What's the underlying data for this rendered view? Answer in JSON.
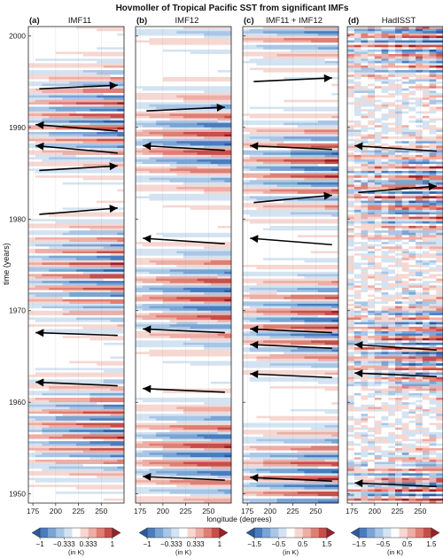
{
  "chart_data": {
    "type": "heatmap",
    "title": "Hovmoller of Tropical Pacific SST from significant IMFs",
    "ylabel": "time (years)",
    "xlabel": "longitude (degrees)",
    "ylim": [
      1949,
      2001
    ],
    "xlim": [
      170,
      275
    ],
    "yticks": [
      1950,
      1960,
      1970,
      1980,
      1990,
      2000
    ],
    "xticks": [
      175,
      200,
      225,
      250
    ],
    "colors": {
      "neg_dark": "#2f63a8",
      "neg_mid": "#6f9fd2",
      "neg_light": "#c7daee",
      "pos_light": "#f2c6c0",
      "pos_mid": "#e07f75",
      "pos_dark": "#a8232a",
      "arrow": "#000000"
    },
    "panels": [
      {
        "letter": "(a)",
        "name": "IMF11",
        "period": 1.35,
        "phase": 0.2,
        "amp": 1.0,
        "noise": 0.0,
        "arrows": [
          {
            "lon_from": 182,
            "year_from": 1994.2,
            "lon_to": 268,
            "year_to": 1994.6
          },
          {
            "lon_from": 268,
            "year_from": 1989.6,
            "lon_to": 178,
            "year_to": 1990.3
          },
          {
            "lon_from": 268,
            "year_from": 1987.2,
            "lon_to": 178,
            "year_to": 1988.0
          },
          {
            "lon_from": 182,
            "year_from": 1985.3,
            "lon_to": 268,
            "year_to": 1985.8
          },
          {
            "lon_from": 182,
            "year_from": 1980.5,
            "lon_to": 268,
            "year_to": 1981.2
          },
          {
            "lon_from": 268,
            "year_from": 1967.3,
            "lon_to": 178,
            "year_to": 1967.6
          },
          {
            "lon_from": 268,
            "year_from": 1961.8,
            "lon_to": 178,
            "year_to": 1962.2
          }
        ],
        "colorbar": {
          "range": [
            -1,
            1
          ],
          "tick_values": [
            -1,
            -0.333,
            0.333,
            1
          ],
          "tick_labels": [
            "−1",
            "−0.333",
            "0.333",
            "1"
          ],
          "unit": "(in K)"
        }
      },
      {
        "letter": "(b)",
        "name": "IMF12",
        "period": 2.0,
        "phase": 0.6,
        "amp": 1.0,
        "noise": 0.0,
        "arrows": [
          {
            "lon_from": 182,
            "year_from": 1991.8,
            "lon_to": 268,
            "year_to": 1992.2
          },
          {
            "lon_from": 268,
            "year_from": 1987.5,
            "lon_to": 178,
            "year_to": 1988.0
          },
          {
            "lon_from": 268,
            "year_from": 1977.3,
            "lon_to": 178,
            "year_to": 1977.9
          },
          {
            "lon_from": 268,
            "year_from": 1967.6,
            "lon_to": 178,
            "year_to": 1968.0
          },
          {
            "lon_from": 268,
            "year_from": 1961.1,
            "lon_to": 178,
            "year_to": 1961.5
          },
          {
            "lon_from": 268,
            "year_from": 1951.5,
            "lon_to": 178,
            "year_to": 1951.9
          }
        ],
        "colorbar": {
          "range": [
            -1,
            1
          ],
          "tick_values": [
            -1,
            -0.333,
            0.333,
            1
          ],
          "tick_labels": [
            "−1",
            "−0.333",
            "0.333",
            "1"
          ],
          "unit": "(in K)"
        }
      },
      {
        "letter": "(c)",
        "name": "IMF11 + IMF12",
        "period": 1.65,
        "phase": 0.4,
        "amp": 1.2,
        "noise": 0.0,
        "arrows": [
          {
            "lon_from": 182,
            "year_from": 1995.0,
            "lon_to": 268,
            "year_to": 1995.4
          },
          {
            "lon_from": 268,
            "year_from": 1987.6,
            "lon_to": 178,
            "year_to": 1988.0
          },
          {
            "lon_from": 182,
            "year_from": 1981.8,
            "lon_to": 268,
            "year_to": 1982.6
          },
          {
            "lon_from": 268,
            "year_from": 1977.2,
            "lon_to": 178,
            "year_to": 1977.9
          },
          {
            "lon_from": 268,
            "year_from": 1967.6,
            "lon_to": 178,
            "year_to": 1968.0
          },
          {
            "lon_from": 268,
            "year_from": 1965.9,
            "lon_to": 178,
            "year_to": 1966.3
          },
          {
            "lon_from": 268,
            "year_from": 1962.7,
            "lon_to": 178,
            "year_to": 1963.1
          },
          {
            "lon_from": 268,
            "year_from": 1951.4,
            "lon_to": 178,
            "year_to": 1951.8
          }
        ],
        "colorbar": {
          "range": [
            -1.5,
            1.5
          ],
          "tick_values": [
            -1.5,
            -0.5,
            0.5,
            1.5
          ],
          "tick_labels": [
            "−1.5",
            "−0.5",
            "0.5",
            "1.5"
          ],
          "unit": "(in K)"
        }
      },
      {
        "letter": "(d)",
        "name": "HadISST",
        "period": 1.1,
        "phase": 0.1,
        "amp": 1.5,
        "noise": 0.55,
        "arrows": [
          {
            "lon_from": 268,
            "year_from": 1987.4,
            "lon_to": 178,
            "year_to": 1988.0
          },
          {
            "lon_from": 182,
            "year_from": 1982.9,
            "lon_to": 268,
            "year_to": 1983.6
          },
          {
            "lon_from": 268,
            "year_from": 1965.7,
            "lon_to": 178,
            "year_to": 1966.3
          },
          {
            "lon_from": 268,
            "year_from": 1962.8,
            "lon_to": 178,
            "year_to": 1963.2
          },
          {
            "lon_from": 268,
            "year_from": 1950.8,
            "lon_to": 178,
            "year_to": 1951.2
          }
        ],
        "colorbar": {
          "range": [
            -1.5,
            1.5
          ],
          "tick_values": [
            -1.5,
            -0.5,
            0.5,
            1.5
          ],
          "tick_labels": [
            "−1.5",
            "−0.5",
            "0.5",
            "1.5"
          ],
          "unit": "(in K)"
        }
      }
    ]
  }
}
